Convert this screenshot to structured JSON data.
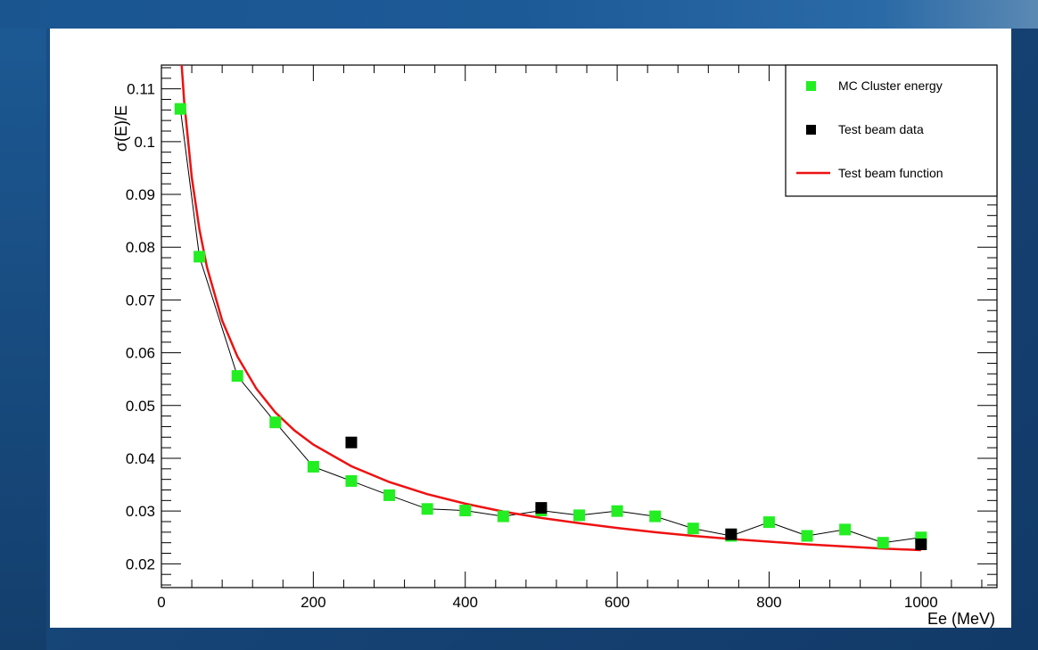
{
  "colors": {
    "mc_marker": "#22ee22",
    "tb_marker": "#000000",
    "function_line": "#ee1111",
    "connector_line": "#000000"
  },
  "chart_data": {
    "type": "scatter",
    "title": "",
    "xlabel": "Ee (MeV)",
    "ylabel": "σ(E)/E",
    "xlim": [
      0,
      1100
    ],
    "ylim": [
      0.0155,
      0.1145
    ],
    "x_ticks": [
      0,
      200,
      400,
      600,
      800,
      1000
    ],
    "x_tick_labels": [
      "0",
      "200",
      "400",
      "600",
      "800",
      "1000"
    ],
    "y_ticks": [
      0.02,
      0.03,
      0.04,
      0.05,
      0.06,
      0.07,
      0.08,
      0.09,
      0.1,
      0.11
    ],
    "y_tick_labels": [
      "0.02",
      "0.03",
      "0.04",
      "0.05",
      "0.06",
      "0.07",
      "0.08",
      "0.09",
      "0.1",
      "0.11"
    ],
    "grid": false,
    "legend_position": "top-right",
    "series": [
      {
        "name": "MC Cluster energy",
        "type": "scatter",
        "marker": "square",
        "connected": true,
        "x": [
          25,
          50,
          100,
          150,
          200,
          250,
          300,
          350,
          400,
          450,
          500,
          550,
          600,
          650,
          700,
          750,
          800,
          850,
          900,
          950,
          1000
        ],
        "y": [
          0.1062,
          0.0782,
          0.0556,
          0.0468,
          0.0384,
          0.0357,
          0.033,
          0.0304,
          0.0301,
          0.029,
          0.0301,
          0.0292,
          0.03,
          0.029,
          0.0267,
          0.0253,
          0.0279,
          0.0253,
          0.0265,
          0.024,
          0.025
        ]
      },
      {
        "name": "Test beam data",
        "type": "scatter",
        "marker": "square",
        "x": [
          250,
          500,
          750,
          1000
        ],
        "y": [
          0.043,
          0.0306,
          0.0256,
          0.0237
        ]
      },
      {
        "name": "Test beam function",
        "type": "line",
        "x": [
          25,
          30,
          40,
          50,
          60,
          80,
          100,
          125,
          150,
          175,
          200,
          250,
          300,
          350,
          400,
          450,
          500,
          550,
          600,
          650,
          700,
          750,
          800,
          850,
          900,
          950,
          1000
        ],
        "y": [
          0.118,
          0.1076,
          0.0932,
          0.0834,
          0.0762,
          0.0661,
          0.0593,
          0.0532,
          0.0487,
          0.0453,
          0.0426,
          0.0385,
          0.0355,
          0.0332,
          0.0314,
          0.0299,
          0.0287,
          0.0277,
          0.0268,
          0.026,
          0.0253,
          0.0247,
          0.0242,
          0.0237,
          0.0233,
          0.0229,
          0.0226
        ]
      }
    ]
  }
}
